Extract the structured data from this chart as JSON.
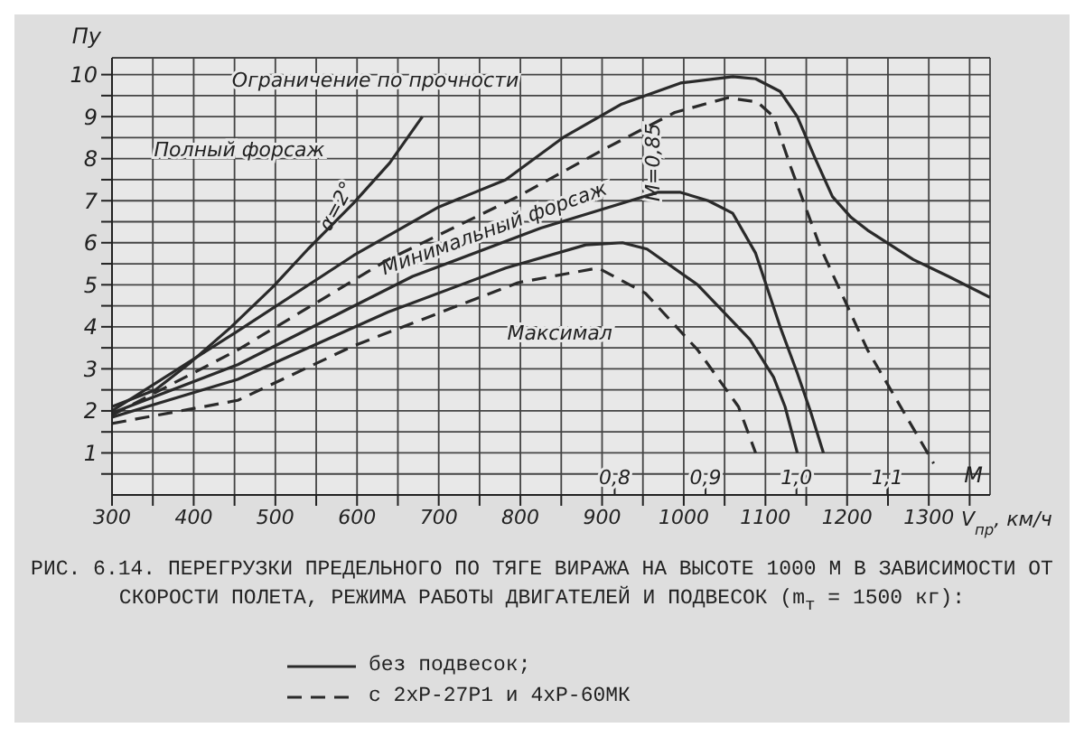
{
  "chart_data": {
    "type": "line",
    "xlabel": "V$_{пр}$, км/ч",
    "ylabel": "Пу",
    "x2label": "M",
    "xlim": [
      300,
      1375
    ],
    "ylim": [
      0,
      10.4
    ],
    "xticks": [
      300,
      {
        "value": 350,
        "label": null
      },
      400,
      {
        "value": 450,
        "label": null
      },
      500,
      {
        "value": 550,
        "label": null
      },
      600,
      {
        "value": 650,
        "label": null
      },
      700,
      {
        "value": 750,
        "label": null
      },
      800,
      {
        "value": 850,
        "label": null
      },
      900,
      {
        "value": 950,
        "label": null
      },
      1000,
      {
        "value": 1050,
        "label": null
      },
      1100,
      {
        "value": 1150,
        "label": null
      },
      1200,
      {
        "value": 1250,
        "label": null
      },
      1300,
      {
        "value": 1350,
        "label": null
      }
    ],
    "yticks": [
      {
        "value": 0.5,
        "label": null
      },
      1,
      {
        "value": 1.5,
        "label": null
      },
      2,
      {
        "value": 2.5,
        "label": null
      },
      3,
      {
        "value": 3.5,
        "label": null
      },
      4,
      {
        "value": 4.5,
        "label": null
      },
      5,
      {
        "value": 5.5,
        "label": null
      },
      6,
      {
        "value": 6.5,
        "label": null
      },
      7,
      {
        "value": 7.5,
        "label": null
      },
      8,
      {
        "value": 8.5,
        "label": null
      },
      9,
      {
        "value": 9.5,
        "label": null
      },
      10
    ],
    "x2lim": [
      0.247,
      1.213
    ],
    "x2ticks": [
      {
        "value": 0.8,
        "label": "0,8"
      },
      {
        "value": 0.9,
        "label": "0,9"
      },
      {
        "value": 1.0,
        "label": "1,0"
      },
      {
        "value": 1.1,
        "label": "1,1"
      }
    ],
    "grid": true,
    "legend": "bottom",
    "marker": "none",
    "series": [
      {
        "name": "без подвесок;",
        "color": "#2a2a2a",
        "line_style": "solid",
        "x": [
          300,
          450,
          596,
          700,
          782,
          852,
          924,
          996,
          1060,
          1088,
          1118,
          1139,
          1161,
          1182,
          1205,
          1225,
          1281,
          1324,
          1375
        ],
        "values": [
          2.0,
          3.85,
          5.7,
          6.85,
          7.5,
          8.5,
          9.3,
          9.8,
          9.95,
          9.9,
          9.6,
          9.0,
          8.0,
          7.1,
          6.6,
          6.3,
          5.6,
          5.2,
          4.7
        ]
      },
      {
        "color": "#2a2a2a",
        "line_style": "solid",
        "x": [
          300,
          353,
          396,
          446,
          497,
          540,
          596,
          640,
          680
        ],
        "values": [
          2.1,
          2.5,
          3.15,
          4.0,
          4.95,
          5.85,
          6.95,
          7.9,
          9.0
        ]
      },
      {
        "name": "с 2xР-27Р1 и 4xР-60МК",
        "color": "#2a2a2a",
        "line_style": "dashed",
        "x": [
          300,
          454,
          638,
          797,
          900,
          989,
          1054,
          1090,
          1110,
          1131,
          1167,
          1225,
          1306
        ],
        "values": [
          1.9,
          3.45,
          5.6,
          7.1,
          8.2,
          9.1,
          9.45,
          9.35,
          9.0,
          7.8,
          5.9,
          3.45,
          0.75
        ]
      },
      {
        "color": "#2a2a2a",
        "line_style": "solid",
        "x": [
          300,
          454,
          668,
          825,
          968,
          996,
          1030,
          1060,
          1088,
          1118,
          1139,
          1155,
          1171
        ],
        "values": [
          1.95,
          3.1,
          5.2,
          6.35,
          7.2,
          7.2,
          7.0,
          6.7,
          5.75,
          4.0,
          2.9,
          2.0,
          1.0
        ]
      },
      {
        "color": "#2a2a2a",
        "line_style": "solid",
        "x": [
          300,
          454,
          638,
          782,
          880,
          925,
          955,
          1017,
          1081,
          1110,
          1124,
          1139
        ],
        "values": [
          1.85,
          2.75,
          4.35,
          5.4,
          5.95,
          6.0,
          5.85,
          5.0,
          3.7,
          2.8,
          2.1,
          1.0
        ]
      },
      {
        "color": "#2a2a2a",
        "line_style": "dashed",
        "x": [
          300,
          454,
          596,
          797,
          895,
          953,
          1017,
          1067,
          1088
        ],
        "values": [
          1.7,
          2.25,
          3.55,
          5.05,
          5.4,
          4.8,
          3.45,
          2.1,
          1.0
        ]
      }
    ],
    "annotations": [
      "Ограничение по прочности",
      "Полный форсаж",
      "α=2°",
      "Минимальный форсаж",
      "Максимал",
      "M=0,85",
      "РИС. 6.14. ПЕРЕГРУЗКИ ПРЕДЕЛЬНОГО ПО ТЯГЕ ВИРАЖА НА ВЫСОТЕ 1000 М В ЗАВИСИМОСТИ ОТ СКОРОСТИ ПОЛЕТА, РЕЖИМА РАБОТЫ ДВИГАТЕЛЕЙ И ПОДВЕСОК (m$_{т}$ = 1500 кг):"
    ]
  }
}
